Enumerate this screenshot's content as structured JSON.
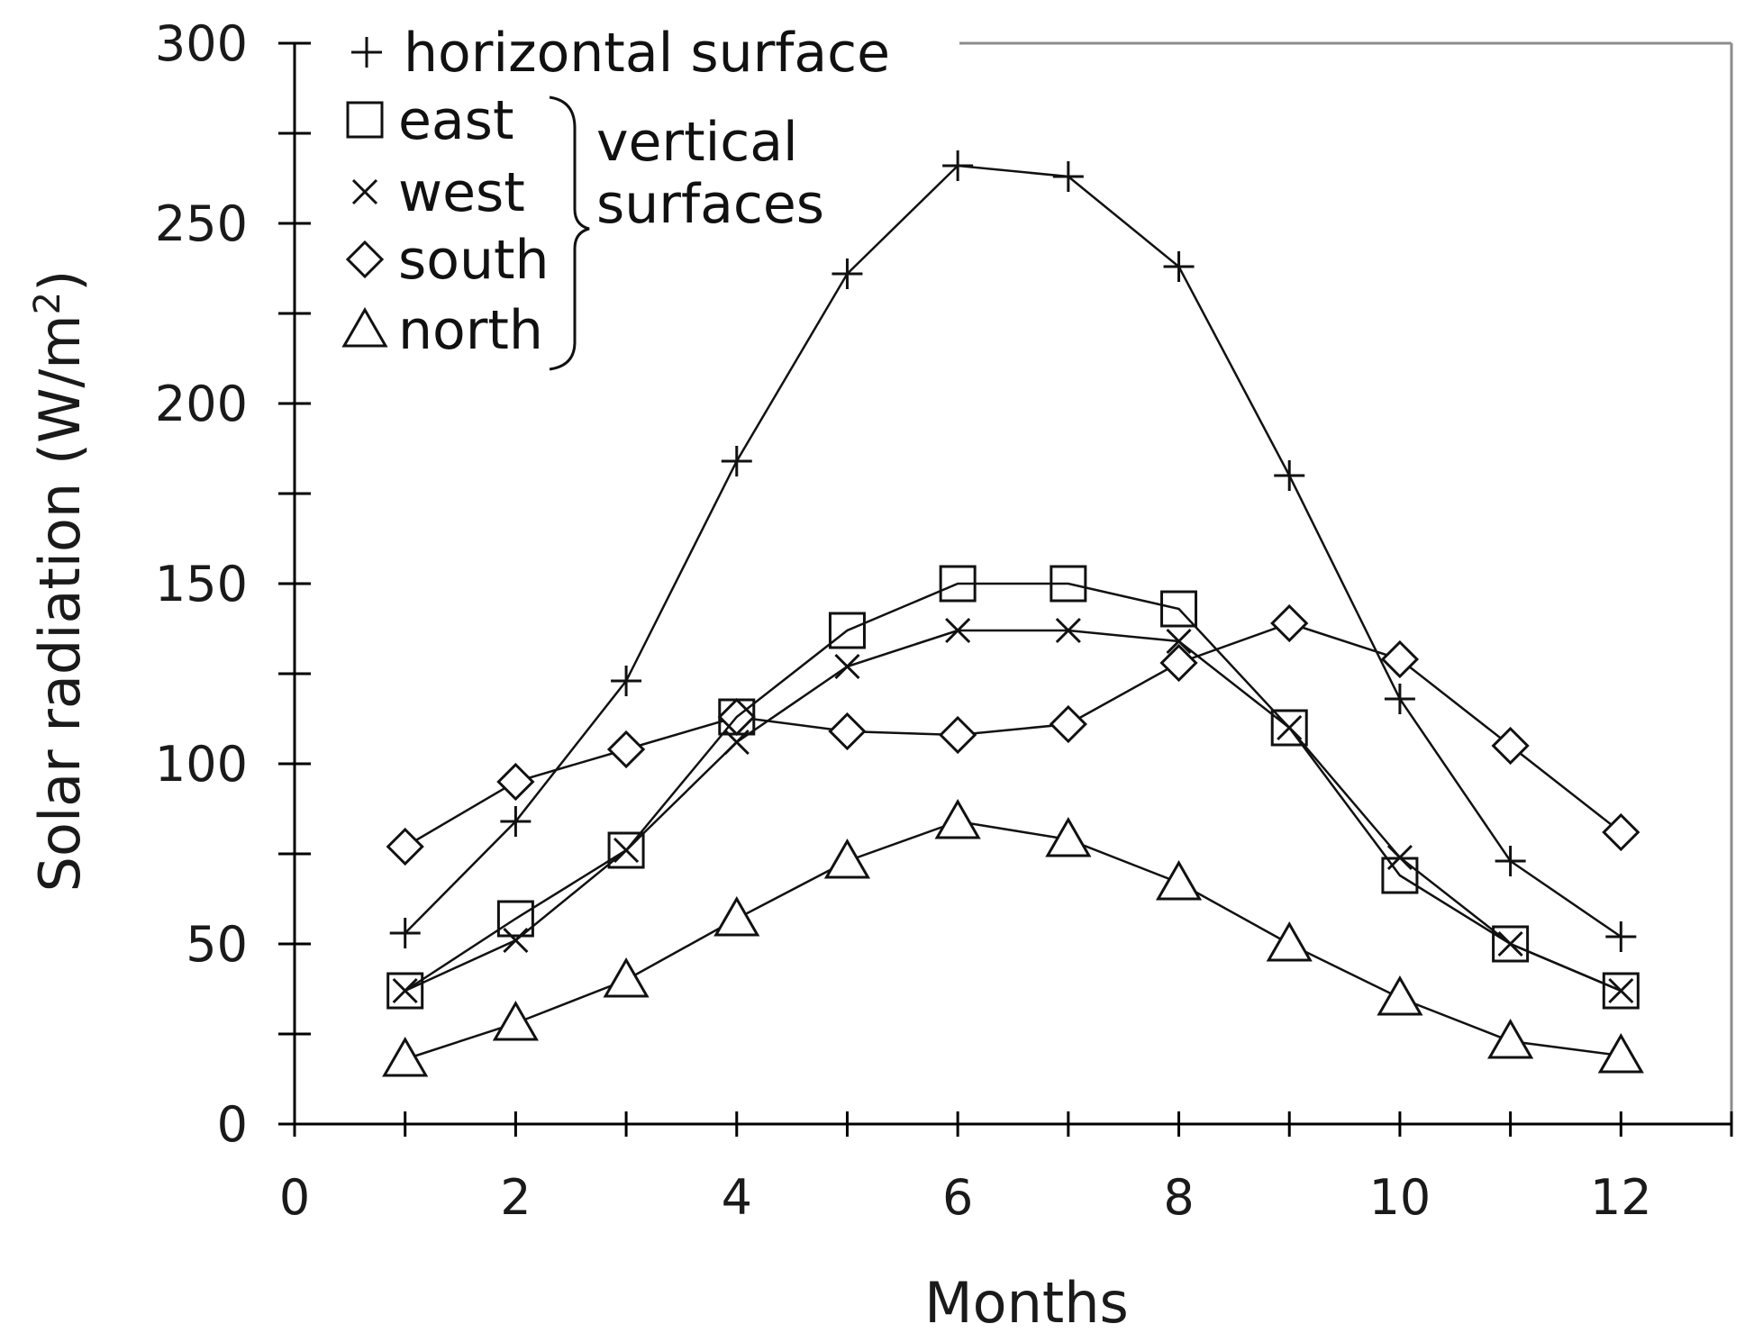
{
  "chart_data": {
    "type": "line",
    "title": "",
    "xlabel": "Months",
    "ylabel": "Solar radiation (W/m",
    "ylabel_sup": "2",
    "ylabel_close": ")",
    "xlim": [
      0,
      13
    ],
    "ylim": [
      0,
      300
    ],
    "xticks": [
      0,
      2,
      4,
      6,
      8,
      10,
      12
    ],
    "xtick_labels": [
      "0",
      "2",
      "4",
      "6",
      "8",
      "10",
      "12"
    ],
    "yticks": [
      0,
      50,
      100,
      150,
      200,
      250,
      300
    ],
    "ytick_labels": [
      "0",
      "50",
      "100",
      "150",
      "200",
      "250",
      "300"
    ],
    "grid": false,
    "legend_position": "top-left",
    "legend_group_label": [
      "vertical",
      "surfaces"
    ],
    "x": [
      1,
      2,
      3,
      4,
      5,
      6,
      7,
      8,
      9,
      10,
      11,
      12
    ],
    "series": [
      {
        "name": "horizontal surface",
        "marker": "plus",
        "values": [
          53,
          84,
          123,
          184,
          236,
          266,
          263,
          238,
          180,
          118,
          73,
          52
        ]
      },
      {
        "name": "east",
        "marker": "square",
        "values": [
          37,
          57,
          76,
          113,
          137,
          150,
          150,
          143,
          110,
          69,
          50,
          37
        ]
      },
      {
        "name": "west",
        "marker": "x",
        "values": [
          37,
          51,
          76,
          106,
          127,
          137,
          137,
          134,
          110,
          74,
          50,
          37
        ]
      },
      {
        "name": "south",
        "marker": "diamond",
        "values": [
          77,
          95,
          104,
          113,
          109,
          108,
          111,
          128,
          139,
          129,
          105,
          81
        ]
      },
      {
        "name": "north",
        "marker": "triangle",
        "values": [
          18,
          28,
          40,
          57,
          73,
          84,
          79,
          67,
          50,
          35,
          23,
          19
        ]
      }
    ],
    "colors": {
      "line": "#111111",
      "axis": "#000000",
      "frame": "#8c8c8c"
    }
  }
}
